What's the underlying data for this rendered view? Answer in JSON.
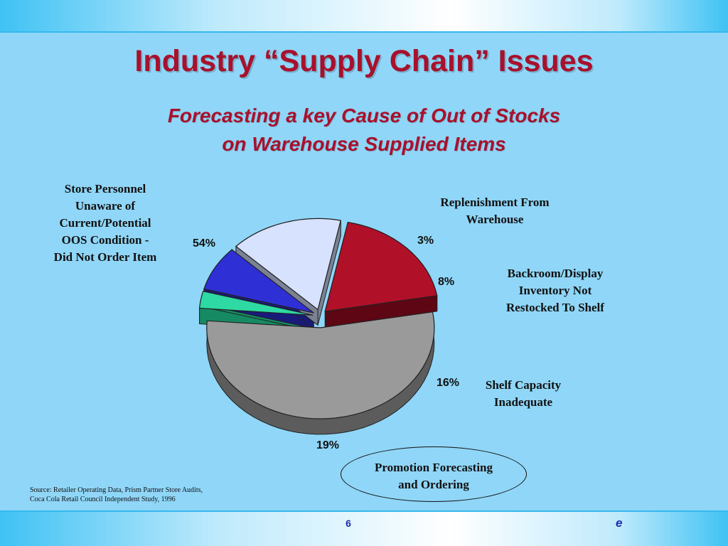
{
  "slide": {
    "title": "Industry “Supply Chain” Issues",
    "subtitle_line1": "Forecasting a key Cause of  Out of Stocks",
    "subtitle_line2": "on Warehouse Supplied Items",
    "source_line1": "Source: Retailer Operating Data, Prism Partner Store Audits,",
    "source_line2": "Coca Cola Retail Council  Independent Study, 1996",
    "page_number": "6",
    "logo_text": "e"
  },
  "chart_data": {
    "type": "pie",
    "title": "",
    "slices": [
      {
        "label_lines": [
          "Store Personnel",
          "Unaware of",
          "Current/Potential",
          "OOS Condition -",
          "Did Not Order Item"
        ],
        "value": 54,
        "value_label": "54%",
        "color": "#9a9a9a",
        "side_color": "#5c5c5c"
      },
      {
        "label_lines": [
          "Replenishment From",
          "Warehouse"
        ],
        "value": 3,
        "value_label": "3%",
        "color": "#2ed9a4",
        "side_color": "#168a63"
      },
      {
        "label_lines": [
          "Backroom/Display",
          "Inventory Not",
          "Restocked To Shelf"
        ],
        "value": 8,
        "value_label": "8%",
        "color": "#2f2fd6",
        "side_color": "#1a1a7a"
      },
      {
        "label_lines": [
          "Shelf Capacity",
          "Inadequate"
        ],
        "value": 16,
        "value_label": "16%",
        "color": "#d6e2ff",
        "side_color": "#7a8294"
      },
      {
        "label_lines": [
          "Promotion Forecasting",
          "and Ordering"
        ],
        "value": 19,
        "value_label": "19%",
        "color": "#b01028",
        "side_color": "#5e0614",
        "highlighted": true
      }
    ]
  }
}
